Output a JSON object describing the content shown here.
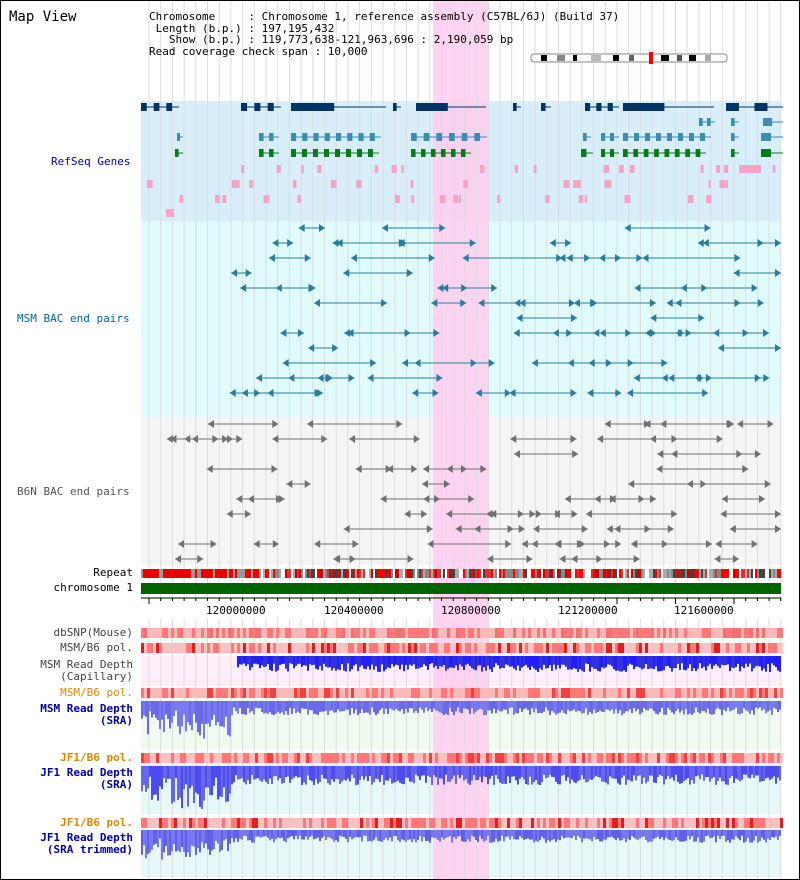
{
  "header": {
    "title": "Map View",
    "info_lines": [
      "Chromosome     : Chromosome 1, reference assembly (C57BL/6J) (Build 37)",
      " Length (b.p.) : 197,195,432",
      "   Show (b.p.) : 119,773,638-121,963,696 : 2,190,059 bp",
      "Read coverage check span : 10,000"
    ]
  },
  "tracks": {
    "refseq_label": "RefSeq Genes",
    "msm_bac_label": "MSM BAC end pairs",
    "b6n_bac_label": "B6N BAC end pairs",
    "repeat_label": "Repeat",
    "chromosome_label": "chromosome 1"
  },
  "axis": {
    "ticks": [
      "120000000",
      "120400000",
      "120800000",
      "121200000",
      "121600000"
    ]
  },
  "lower_tracks": {
    "dbsnp_label": "dbSNP(Mouse)",
    "msm_b6_pol_1": "MSM/B6 pol.",
    "msm_read_depth_cap": [
      "MSM Read Depth",
      "(Capillary)"
    ],
    "msm_b6_pol_2": "MSM/B6 pol.",
    "msm_read_depth_sra": [
      "MSM Read Depth",
      "(SRA)"
    ],
    "jf1_b6_pol_1": "JF1/B6 pol.",
    "jf1_read_depth_sra": [
      "JF1 Read Depth",
      "(SRA)"
    ],
    "jf1_b6_pol_2": "JF1/B6 pol.",
    "jf1_read_depth_trim": [
      "JF1 Read Depth",
      "(SRA trimmed)"
    ]
  },
  "colors": {
    "refseq_bg": "#d8eefa",
    "msm_bg": "#e0fbfb",
    "b6n_bg": "#f5f5f5",
    "highlight": "#ffccf0",
    "label_blue": "#0000aa",
    "label_teal": "#00669a",
    "label_grey": "#555555",
    "label_orange": "#dd8800",
    "chromosome_green": "#006400"
  }
}
